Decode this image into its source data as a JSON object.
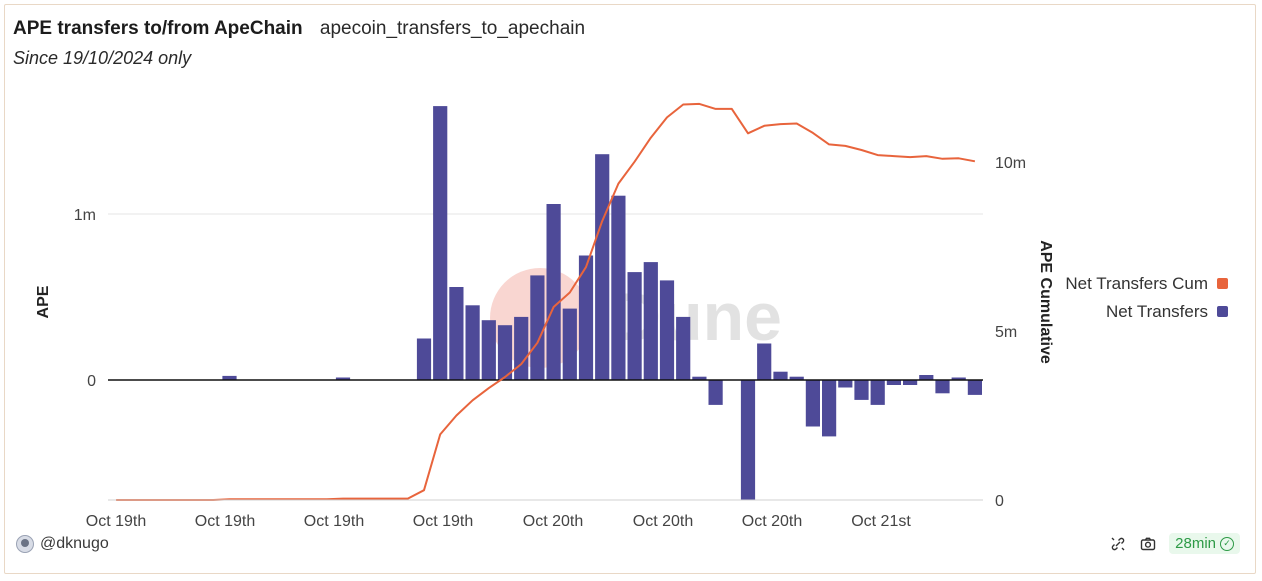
{
  "header": {
    "title": "APE transfers to/from ApeChain",
    "query_name": "apecoin_transfers_to_apechain",
    "subtitle": "Since 19/10/2024 only"
  },
  "footer": {
    "author": "@dknugo",
    "refresh_age": "28min"
  },
  "colors": {
    "bar": "#4e4a98",
    "line": "#e8643c",
    "grid": "#e6e6e6",
    "zero_line": "#111111",
    "watermark_circle": "#f2a49a",
    "watermark_text": "#d9d9d9"
  },
  "watermark": "Dune",
  "chart_data": {
    "type": "bar",
    "x_ticks": [
      "Oct 19th",
      "Oct 19th",
      "Oct 19th",
      "Oct 19th",
      "Oct 20th",
      "Oct 20th",
      "Oct 20th",
      "Oct 21st"
    ],
    "y_left": {
      "label": "APE",
      "ticks": [
        "1m",
        "0"
      ],
      "ylim": [
        -720000,
        1650000
      ]
    },
    "y_right": {
      "label": "APE Cumulative",
      "ticks": [
        "10m",
        "5m",
        "0"
      ],
      "ylim": [
        0,
        11900000
      ]
    },
    "legend": {
      "placement": "right",
      "entries": [
        {
          "name": "Net Transfers Cum",
          "color": "#e8643c"
        },
        {
          "name": "Net Transfers",
          "color": "#4e4a98"
        }
      ]
    },
    "series": [
      {
        "name": "Net Transfers",
        "type": "bar",
        "axis": "left",
        "values": [
          0,
          0,
          0,
          0,
          0,
          0,
          0,
          25000,
          0,
          0,
          0,
          0,
          0,
          0,
          15000,
          0,
          0,
          0,
          0,
          250000,
          1650000,
          560000,
          450000,
          360000,
          330000,
          380000,
          630000,
          1060000,
          430000,
          750000,
          1360000,
          1110000,
          650000,
          710000,
          600000,
          380000,
          20000,
          -150000,
          0,
          -720000,
          220000,
          50000,
          20000,
          -280000,
          -340000,
          -45000,
          -120000,
          -150000,
          -30000,
          -30000,
          30000,
          -80000,
          15000,
          -90000
        ]
      },
      {
        "name": "Net Transfers Cum",
        "type": "line",
        "axis": "right",
        "values": [
          0,
          0,
          0,
          0,
          0,
          0,
          0,
          25000,
          25000,
          25000,
          25000,
          25000,
          25000,
          25000,
          40000,
          40000,
          40000,
          40000,
          40000,
          290000,
          1940000,
          2500000,
          2950000,
          3310000,
          3640000,
          4020000,
          4650000,
          5710000,
          6140000,
          6890000,
          8250000,
          9360000,
          10010000,
          10720000,
          11320000,
          11700000,
          11720000,
          11570000,
          11570000,
          10850000,
          11070000,
          11120000,
          11140000,
          10860000,
          10520000,
          10475000,
          10355000,
          10205000,
          10175000,
          10145000,
          10175000,
          10095000,
          10110000,
          10020000
        ]
      }
    ]
  }
}
